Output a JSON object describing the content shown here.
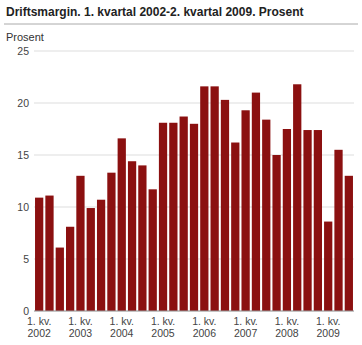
{
  "chart_data": {
    "type": "bar",
    "title": "Driftsmargin. 1. kvartal 2002-2. kvartal 2009. Prosent",
    "ylabel": "Prosent",
    "categories": [
      "1. kv.\n2002",
      null,
      null,
      null,
      "1. kv.\n2003",
      null,
      null,
      null,
      "1. kv.\n2004",
      null,
      null,
      null,
      "1. kv.\n2005",
      null,
      null,
      null,
      "1. kv.\n2006",
      null,
      null,
      null,
      "1. kv.\n2007",
      null,
      null,
      null,
      "1. kv.\n2008",
      null,
      null,
      null,
      "1. kv.\n2009",
      null,
      null
    ],
    "values": [
      10.9,
      11.1,
      6.1,
      8.1,
      13.0,
      9.9,
      10.7,
      13.3,
      16.6,
      14.4,
      14.0,
      11.7,
      18.1,
      18.1,
      18.7,
      18.0,
      21.6,
      21.6,
      20.3,
      16.2,
      19.3,
      21.0,
      18.4,
      15.0,
      17.5,
      21.8,
      17.4,
      17.4,
      8.6,
      15.5,
      13.0
    ],
    "color": "#8B1010",
    "ylim": [
      0,
      25
    ],
    "yticks": [
      0,
      5,
      10,
      15,
      20,
      25
    ],
    "grid": true
  }
}
